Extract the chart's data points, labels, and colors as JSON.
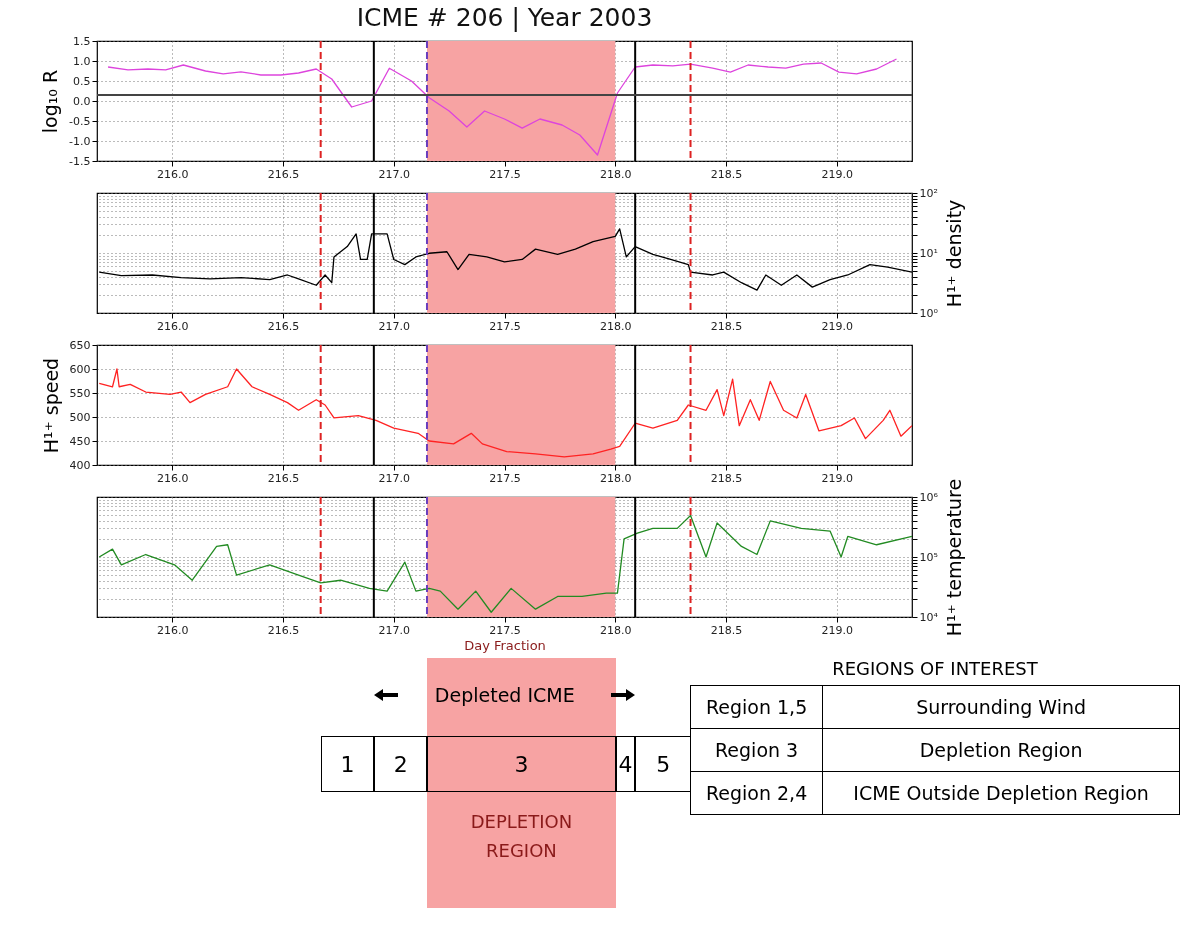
{
  "chart_data": [
    {
      "type": "line",
      "title": "ICME # 206 | Year 2003",
      "ylabel": "log₁₀ R",
      "series": [
        {
          "color": "#dd44dd",
          "x": [
            215.71,
            215.8,
            215.89,
            215.97,
            216.05,
            216.15,
            216.23,
            216.31,
            216.4,
            216.49,
            216.57,
            216.65,
            216.72,
            216.81,
            216.9,
            216.98,
            217.08,
            217.16,
            217.25,
            217.33,
            217.41,
            217.5,
            217.58,
            217.66,
            217.76,
            217.84,
            217.92,
            218.01,
            218.09,
            218.17,
            218.26,
            218.34,
            218.44,
            218.52,
            218.6,
            218.69,
            218.77,
            218.85,
            218.93,
            219.01,
            219.09,
            219.18,
            219.27
          ],
          "values": [
            0.85,
            0.78,
            0.8,
            0.78,
            0.9,
            0.75,
            0.68,
            0.73,
            0.65,
            0.65,
            0.7,
            0.8,
            0.55,
            -0.15,
            0.0,
            0.82,
            0.5,
            0.08,
            -0.25,
            -0.65,
            -0.25,
            -0.45,
            -0.68,
            -0.45,
            -0.6,
            -0.85,
            -1.35,
            0.2,
            0.85,
            0.9,
            0.88,
            0.92,
            0.82,
            0.72,
            0.9,
            0.85,
            0.82,
            0.92,
            0.95,
            0.72,
            0.68,
            0.8,
            1.05
          ]
        }
      ],
      "xlim": [
        215.66,
        219.34
      ],
      "xticks": [
        {
          "value": 216,
          "label": "216.0"
        },
        216.5,
        {
          "value": 217,
          "label": "217.0"
        },
        217.5,
        {
          "value": 218,
          "label": "218.0"
        },
        218.5,
        {
          "value": 219,
          "label": "219.0"
        }
      ],
      "ylim": [
        -1.5,
        1.5
      ],
      "yticks": [
        -1.5,
        {
          "value": -1,
          "label": "-1.0"
        },
        -0.5,
        {
          "value": 0,
          "label": "0.0"
        },
        0.5,
        {
          "value": 1,
          "label": "1.0"
        },
        1.5
      ],
      "grid": true,
      "ref_lines": [
        {
          "axis": "x",
          "value": 216.67,
          "color": "#dd2222",
          "line_style": "dashed"
        },
        {
          "axis": "x",
          "value": 216.91,
          "color": "#000000",
          "line_style": "solid"
        },
        {
          "axis": "x",
          "value": 217.15,
          "color": "#6a3dbd",
          "line_style": "dashed"
        },
        {
          "axis": "x",
          "value": 218.09,
          "color": "#000000",
          "line_style": "solid"
        },
        {
          "axis": "x",
          "value": 218.34,
          "color": "#dd2222",
          "line_style": "dashed"
        },
        {
          "axis": "y",
          "value": 0.15,
          "color": "#444444",
          "line_style": "solid"
        }
      ],
      "bands": [
        {
          "axis": "x",
          "from": 217.15,
          "to": 218.0,
          "color": "#f7a3a3"
        }
      ]
    },
    {
      "type": "line",
      "y2label": "H¹⁺ density",
      "series": [
        {
          "color": "#000000",
          "axis": "y2",
          "x": [
            215.67,
            215.77,
            215.91,
            216.04,
            216.17,
            216.31,
            216.44,
            216.52,
            216.57,
            216.65,
            216.69,
            216.72,
            216.73,
            216.79,
            216.83,
            216.85,
            216.88,
            216.9,
            216.97,
            217.0,
            217.05,
            217.1,
            217.16,
            217.24,
            217.29,
            217.34,
            217.42,
            217.5,
            217.58,
            217.64,
            217.74,
            217.82,
            217.9,
            218.0,
            218.02,
            218.05,
            218.09,
            218.17,
            218.25,
            218.33,
            218.34,
            218.44,
            218.49,
            218.57,
            218.64,
            218.68,
            218.75,
            218.82,
            218.89,
            218.97,
            219.05,
            219.15,
            219.23,
            219.34
          ],
          "values": [
            4.8,
            4.2,
            4.3,
            3.9,
            3.7,
            3.9,
            3.6,
            4.3,
            3.7,
            2.9,
            4.3,
            3.2,
            8.6,
            12.8,
            20.8,
            7.8,
            7.8,
            20.8,
            20.8,
            7.8,
            6.4,
            8.6,
            9.9,
            10.5,
            5.3,
            9.5,
            8.6,
            7.1,
            7.8,
            11.6,
            9.5,
            11.6,
            15.5,
            18.9,
            25.3,
            8.6,
            12.8,
            9.5,
            7.8,
            6.4,
            4.8,
            4.3,
            4.8,
            3.2,
            2.4,
            4.3,
            2.9,
            4.3,
            2.7,
            3.6,
            4.3,
            6.4,
            5.8,
            4.8
          ]
        }
      ],
      "xlim": [
        215.66,
        219.34
      ],
      "xticks": [
        {
          "value": 216,
          "label": "216.0"
        },
        216.5,
        {
          "value": 217,
          "label": "217.0"
        },
        217.5,
        {
          "value": 218,
          "label": "218.0"
        },
        218.5,
        {
          "value": 219,
          "label": "219.0"
        }
      ],
      "y2lim": [
        1,
        100
      ],
      "y2ticks": [
        {
          "value": 1,
          "label": "10⁰"
        },
        {
          "value": 2,
          "label": null
        },
        {
          "value": 3,
          "label": null
        },
        {
          "value": 4,
          "label": null
        },
        {
          "value": 5,
          "label": null
        },
        {
          "value": 6,
          "label": null
        },
        {
          "value": 7,
          "label": null
        },
        {
          "value": 8,
          "label": null
        },
        {
          "value": 9,
          "label": null
        },
        {
          "value": 10,
          "label": "10¹"
        },
        {
          "value": 20,
          "label": null
        },
        {
          "value": 30,
          "label": null
        },
        {
          "value": 40,
          "label": null
        },
        {
          "value": 50,
          "label": null
        },
        {
          "value": 60,
          "label": null
        },
        {
          "value": 70,
          "label": null
        },
        {
          "value": 80,
          "label": null
        },
        {
          "value": 90,
          "label": null
        },
        {
          "value": 100,
          "label": "10²"
        }
      ],
      "log": "y2",
      "grid": true,
      "ref_lines": [
        {
          "axis": "x",
          "value": 216.67,
          "color": "#dd2222",
          "line_style": "dashed"
        },
        {
          "axis": "x",
          "value": 216.91,
          "color": "#000000",
          "line_style": "solid"
        },
        {
          "axis": "x",
          "value": 217.15,
          "color": "#6a3dbd",
          "line_style": "dashed"
        },
        {
          "axis": "x",
          "value": 218.09,
          "color": "#000000",
          "line_style": "solid"
        },
        {
          "axis": "x",
          "value": 218.34,
          "color": "#dd2222",
          "line_style": "dashed"
        }
      ],
      "bands": [
        {
          "axis": "x",
          "from": 217.15,
          "to": 218.0,
          "color": "#f7a3a3"
        }
      ]
    },
    {
      "type": "line",
      "ylabel": "H¹⁺ speed",
      "series": [
        {
          "color": "#ff2222",
          "x": [
            215.67,
            215.73,
            215.75,
            215.76,
            215.81,
            215.88,
            215.99,
            216.04,
            216.08,
            216.15,
            216.25,
            216.29,
            216.36,
            216.44,
            216.52,
            216.57,
            216.65,
            216.69,
            216.73,
            216.84,
            216.92,
            217.0,
            217.11,
            217.16,
            217.27,
            217.35,
            217.4,
            217.51,
            217.64,
            217.77,
            217.9,
            217.98,
            218.02,
            218.09,
            218.17,
            218.28,
            218.33,
            218.41,
            218.46,
            218.49,
            218.53,
            218.56,
            218.61,
            218.65,
            218.7,
            218.76,
            218.82,
            218.86,
            218.92,
            219.02,
            219.08,
            219.13,
            219.21,
            219.24,
            219.29,
            219.34
          ],
          "values": [
            570,
            563,
            600,
            563,
            568,
            552,
            547,
            552,
            530,
            547,
            563,
            600,
            563,
            547,
            530,
            514,
            536,
            525,
            498,
            503,
            493,
            477,
            466,
            450,
            444,
            466,
            444,
            428,
            423,
            417,
            423,
            433,
            439,
            487,
            477,
            493,
            525,
            514,
            557,
            503,
            579,
            482,
            536,
            493,
            574,
            514,
            498,
            547,
            471,
            482,
            498,
            455,
            493,
            514,
            460,
            482
          ]
        }
      ],
      "xlim": [
        215.66,
        219.34
      ],
      "xticks": [
        {
          "value": 216,
          "label": "216.0"
        },
        216.5,
        {
          "value": 217,
          "label": "217.0"
        },
        217.5,
        {
          "value": 218,
          "label": "218.0"
        },
        218.5,
        {
          "value": 219,
          "label": "219.0"
        }
      ],
      "ylim": [
        400,
        650
      ],
      "yticks": [
        400,
        450,
        500,
        550,
        600,
        650
      ],
      "grid": true,
      "ref_lines": [
        {
          "axis": "x",
          "value": 216.67,
          "color": "#dd2222",
          "line_style": "dashed"
        },
        {
          "axis": "x",
          "value": 216.91,
          "color": "#000000",
          "line_style": "solid"
        },
        {
          "axis": "x",
          "value": 217.15,
          "color": "#6a3dbd",
          "line_style": "dashed"
        },
        {
          "axis": "x",
          "value": 218.09,
          "color": "#000000",
          "line_style": "solid"
        },
        {
          "axis": "x",
          "value": 218.34,
          "color": "#dd2222",
          "line_style": "dashed"
        }
      ],
      "bands": [
        {
          "axis": "x",
          "from": 217.15,
          "to": 218.0,
          "color": "#f7a3a3"
        }
      ]
    },
    {
      "type": "line",
      "y2label": "H¹⁺ temperature",
      "xlabel": "Day Fraction",
      "series": [
        {
          "color": "#228b22",
          "axis": "y2",
          "x": [
            215.67,
            215.73,
            215.77,
            215.88,
            216.01,
            216.09,
            216.2,
            216.25,
            216.29,
            216.44,
            216.57,
            216.67,
            216.76,
            216.89,
            216.97,
            217.05,
            217.1,
            217.16,
            217.21,
            217.29,
            217.37,
            217.44,
            217.53,
            217.64,
            217.74,
            217.85,
            217.96,
            218.01,
            218.04,
            218.1,
            218.17,
            218.28,
            218.34,
            218.41,
            218.46,
            218.57,
            218.64,
            218.7,
            218.84,
            218.97,
            219.02,
            219.05,
            219.18,
            219.34
          ],
          "values": [
            100000,
            135000,
            74000,
            110000,
            74000,
            41000,
            150000,
            160000,
            50000,
            74000,
            50000,
            37000,
            41000,
            30000,
            27000,
            82000,
            27000,
            30000,
            27000,
            13500,
            27000,
            12000,
            30000,
            13500,
            22000,
            22000,
            25000,
            25000,
            200000,
            250000,
            300000,
            300000,
            490000,
            100000,
            370000,
            150000,
            110000,
            400000,
            300000,
            270000,
            100000,
            220000,
            160000,
            220000
          ]
        }
      ],
      "xlim": [
        215.66,
        219.34
      ],
      "xticks": [
        {
          "value": 216,
          "label": "216.0"
        },
        216.5,
        {
          "value": 217,
          "label": "217.0"
        },
        217.5,
        {
          "value": 218,
          "label": "218.0"
        },
        218.5,
        {
          "value": 219,
          "label": "219.0"
        }
      ],
      "y2lim": [
        10000,
        1000000
      ],
      "y2ticks": [
        {
          "value": 10000,
          "label": "10⁴"
        },
        {
          "value": 20000,
          "label": null
        },
        {
          "value": 30000,
          "label": null
        },
        {
          "value": 40000,
          "label": null
        },
        {
          "value": 50000,
          "label": null
        },
        {
          "value": 60000,
          "label": null
        },
        {
          "value": 70000,
          "label": null
        },
        {
          "value": 80000,
          "label": null
        },
        {
          "value": 90000,
          "label": null
        },
        {
          "value": 100000,
          "label": "10⁵"
        },
        {
          "value": 200000,
          "label": null
        },
        {
          "value": 300000,
          "label": null
        },
        {
          "value": 400000,
          "label": null
        },
        {
          "value": 500000,
          "label": null
        },
        {
          "value": 600000,
          "label": null
        },
        {
          "value": 700000,
          "label": null
        },
        {
          "value": 800000,
          "label": null
        },
        {
          "value": 900000,
          "label": null
        },
        {
          "value": 1000000,
          "label": "10⁶"
        }
      ],
      "log": "y2",
      "grid": true,
      "ref_lines": [
        {
          "axis": "x",
          "value": 216.67,
          "color": "#dd2222",
          "line_style": "dashed"
        },
        {
          "axis": "x",
          "value": 216.91,
          "color": "#000000",
          "line_style": "solid"
        },
        {
          "axis": "x",
          "value": 217.15,
          "color": "#6a3dbd",
          "line_style": "dashed"
        },
        {
          "axis": "x",
          "value": 218.09,
          "color": "#000000",
          "line_style": "solid"
        },
        {
          "axis": "x",
          "value": 218.34,
          "color": "#dd2222",
          "line_style": "dashed"
        }
      ],
      "bands": [
        {
          "axis": "x",
          "from": 217.15,
          "to": 218.0,
          "color": "#f7a3a3"
        }
      ]
    },
    {
      "type": "other",
      "title": "REGIONS OF INTEREST",
      "annotations": [
        "Depleted ICME",
        "1",
        "2",
        "3",
        "4",
        "5",
        "DEPLETION REGION",
        "Region 1,5",
        "Surrounding Wind",
        "Region 3",
        "Depletion Region",
        "Region 2,4",
        "ICME Outside Depletion Region"
      ]
    }
  ]
}
